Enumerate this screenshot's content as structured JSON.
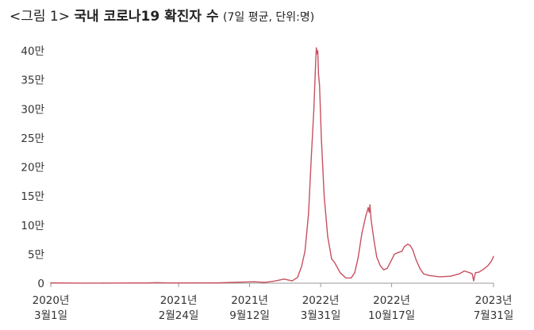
{
  "header": {
    "lead": "<그림 1>",
    "title": "국내 코로나19 확진자 수",
    "unit_note": "(7일 평균, 단위:명)"
  },
  "chart_data": {
    "type": "line",
    "title": "국내 코로나19 확진자 수",
    "xlabel": "",
    "ylabel": "",
    "y_unit": "만",
    "ylim": [
      0,
      42
    ],
    "y_ticks": [
      {
        "value": 0,
        "label": "0"
      },
      {
        "value": 5,
        "label": "5만"
      },
      {
        "value": 10,
        "label": "10만"
      },
      {
        "value": 15,
        "label": "15만"
      },
      {
        "value": 20,
        "label": "20만"
      },
      {
        "value": 25,
        "label": "25만"
      },
      {
        "value": 30,
        "label": "30만"
      },
      {
        "value": 35,
        "label": "35만"
      },
      {
        "value": 40,
        "label": "40만"
      }
    ],
    "x_range": [
      "2020-03-01",
      "2023-07-31"
    ],
    "x_ticks": [
      {
        "date": "2020-03-01",
        "line1": "2020년",
        "line2": "3월1일"
      },
      {
        "date": "2021-02-24",
        "line1": "2021년",
        "line2": "2월24일"
      },
      {
        "date": "2021-09-12",
        "line1": "2021년",
        "line2": "9월12일"
      },
      {
        "date": "2022-03-31",
        "line1": "2022년",
        "line2": "3월31일"
      },
      {
        "date": "2022-10-17",
        "line1": "2022년",
        "line2": "10월17일"
      },
      {
        "date": "2023-07-31",
        "line1": "2023년",
        "line2": "7월31일"
      }
    ],
    "line_color": "#c8505f",
    "grid": false,
    "series": [
      {
        "points": [
          [
            "2020-03-01",
            0.05
          ],
          [
            "2020-06-01",
            0.005
          ],
          [
            "2020-09-01",
            0.03
          ],
          [
            "2020-12-01",
            0.05
          ],
          [
            "2020-12-25",
            0.1
          ],
          [
            "2021-02-01",
            0.04
          ],
          [
            "2021-04-15",
            0.06
          ],
          [
            "2021-06-15",
            0.05
          ],
          [
            "2021-07-25",
            0.15
          ],
          [
            "2021-09-25",
            0.25
          ],
          [
            "2021-10-25",
            0.15
          ],
          [
            "2021-11-20",
            0.35
          ],
          [
            "2021-12-18",
            0.7
          ],
          [
            "2022-01-10",
            0.4
          ],
          [
            "2022-01-25",
            1.0
          ],
          [
            "2022-02-05",
            2.8
          ],
          [
            "2022-02-15",
            5.5
          ],
          [
            "2022-02-25",
            12.0
          ],
          [
            "2022-03-05",
            22.0
          ],
          [
            "2022-03-12",
            30.0
          ],
          [
            "2022-03-17",
            38.0
          ],
          [
            "2022-03-19",
            40.5
          ],
          [
            "2022-03-21",
            39.5
          ],
          [
            "2022-03-23",
            40.0
          ],
          [
            "2022-03-25",
            36.0
          ],
          [
            "2022-03-28",
            34.0
          ],
          [
            "2022-04-02",
            25.0
          ],
          [
            "2022-04-10",
            15.0
          ],
          [
            "2022-04-20",
            8.0
          ],
          [
            "2022-05-01",
            4.2
          ],
          [
            "2022-05-10",
            3.5
          ],
          [
            "2022-05-25",
            1.8
          ],
          [
            "2022-06-10",
            0.9
          ],
          [
            "2022-06-25",
            0.9
          ],
          [
            "2022-07-05",
            1.8
          ],
          [
            "2022-07-15",
            4.5
          ],
          [
            "2022-07-25",
            8.5
          ],
          [
            "2022-08-05",
            11.5
          ],
          [
            "2022-08-12",
            13.0
          ],
          [
            "2022-08-15",
            12.2
          ],
          [
            "2022-08-17",
            13.5
          ],
          [
            "2022-08-20",
            11.0
          ],
          [
            "2022-08-28",
            7.5
          ],
          [
            "2022-09-05",
            4.5
          ],
          [
            "2022-09-15",
            3.0
          ],
          [
            "2022-09-25",
            2.3
          ],
          [
            "2022-10-05",
            2.6
          ],
          [
            "2022-10-15",
            3.8
          ],
          [
            "2022-10-25",
            5.0
          ],
          [
            "2022-11-05",
            5.3
          ],
          [
            "2022-11-15",
            5.5
          ],
          [
            "2022-11-22",
            6.3
          ],
          [
            "2022-12-01",
            6.7
          ],
          [
            "2022-12-08",
            6.5
          ],
          [
            "2022-12-15",
            5.8
          ],
          [
            "2022-12-25",
            4.0
          ],
          [
            "2023-01-05",
            2.5
          ],
          [
            "2023-01-15",
            1.6
          ],
          [
            "2023-02-01",
            1.3
          ],
          [
            "2023-03-01",
            1.1
          ],
          [
            "2023-04-01",
            1.2
          ],
          [
            "2023-04-25",
            1.6
          ],
          [
            "2023-05-10",
            2.1
          ],
          [
            "2023-05-25",
            1.8
          ],
          [
            "2023-06-01",
            1.6
          ],
          [
            "2023-06-05",
            0.4
          ],
          [
            "2023-06-10",
            1.8
          ],
          [
            "2023-06-20",
            1.9
          ],
          [
            "2023-07-05",
            2.5
          ],
          [
            "2023-07-15",
            3.0
          ],
          [
            "2023-07-25",
            3.8
          ],
          [
            "2023-07-31",
            4.6
          ]
        ]
      }
    ]
  }
}
